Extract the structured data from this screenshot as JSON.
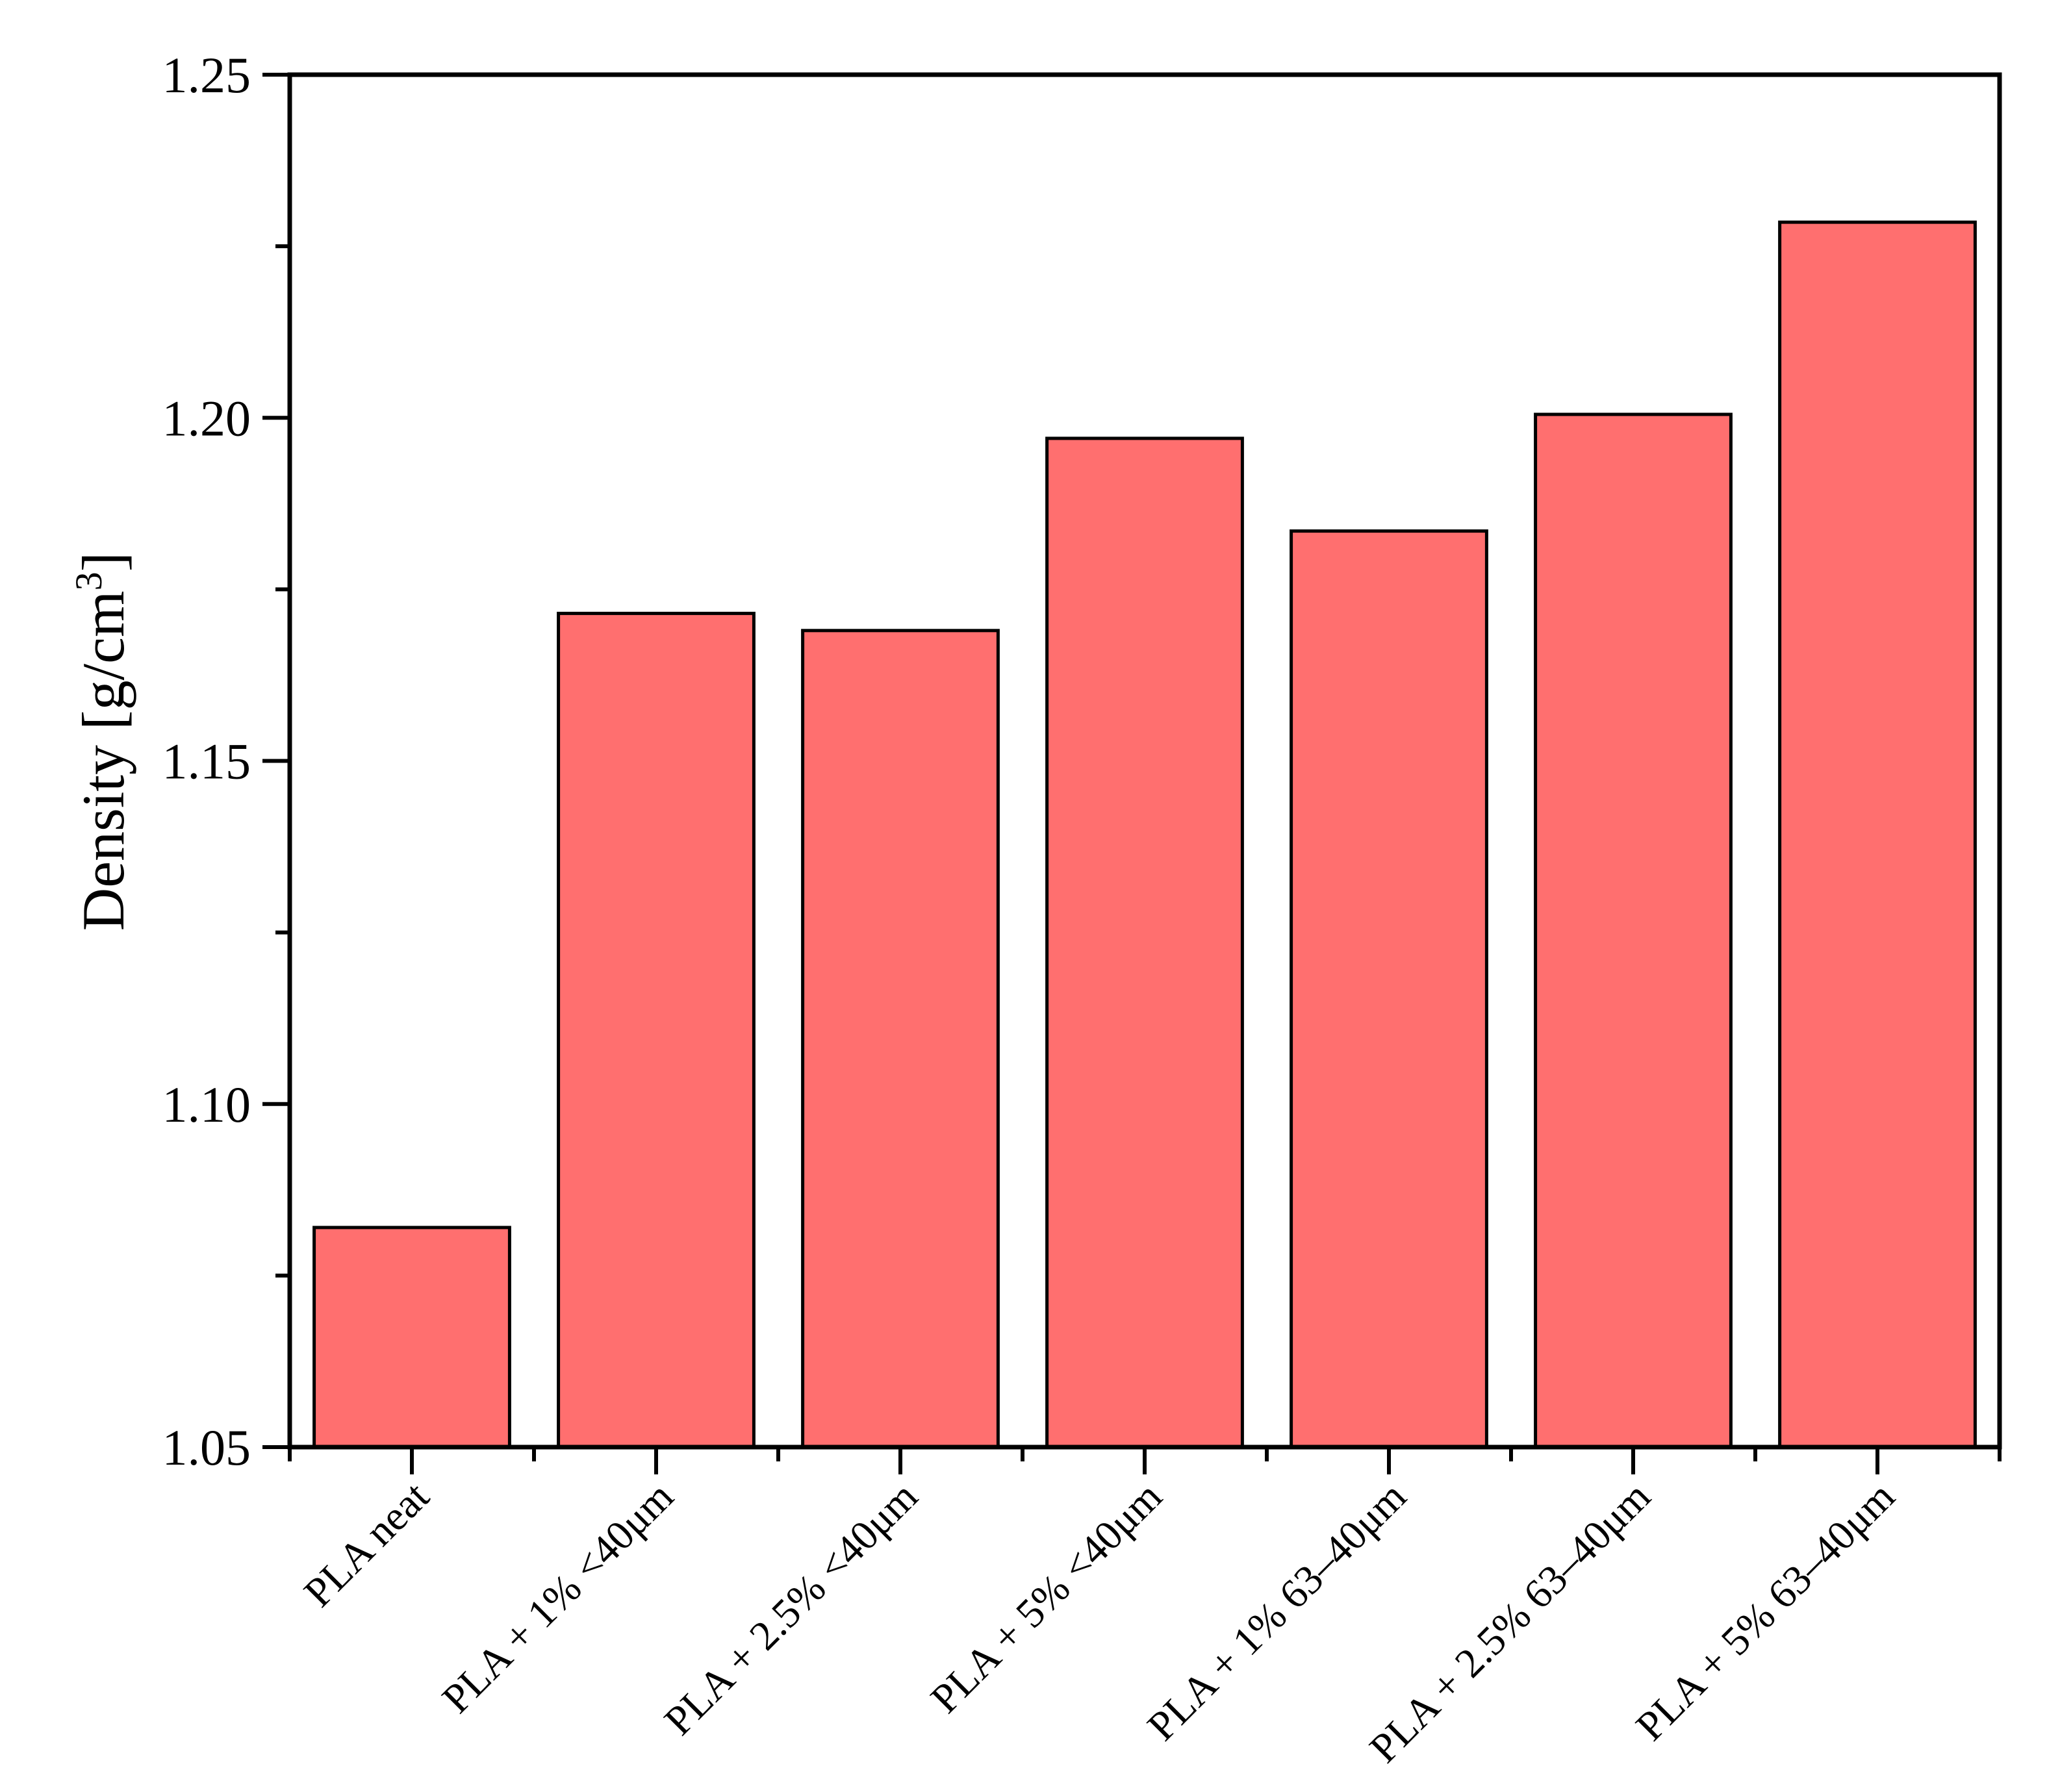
{
  "chart_data": {
    "type": "bar",
    "categories": [
      "PLA neat",
      "PLA + 1% <40μm",
      "PLA + 2.5% <40μm",
      "PLA + 5% <40μm",
      "PLA + 1% 63–40μm",
      "PLA + 2.5% 63–40μm",
      "PLA + 5% 63–40μm"
    ],
    "values": [
      1.082,
      1.1715,
      1.169,
      1.197,
      1.1835,
      1.2005,
      1.2285
    ],
    "title": "",
    "xlabel": "",
    "ylabel": {
      "main": "Density [g/cm",
      "superscript": "3",
      "close": "]"
    },
    "ylim": [
      1.05,
      1.25
    ],
    "yticks": [
      1.05,
      1.1,
      1.15,
      1.2,
      1.25
    ],
    "ytick_labels": [
      "1.05",
      "1.10",
      "1.15",
      "1.20",
      "1.25"
    ],
    "grid": false,
    "legend": "none",
    "colors": {
      "bar_fill": "#ff6f6f",
      "bar_stroke": "#000000",
      "axis": "#000000"
    }
  }
}
